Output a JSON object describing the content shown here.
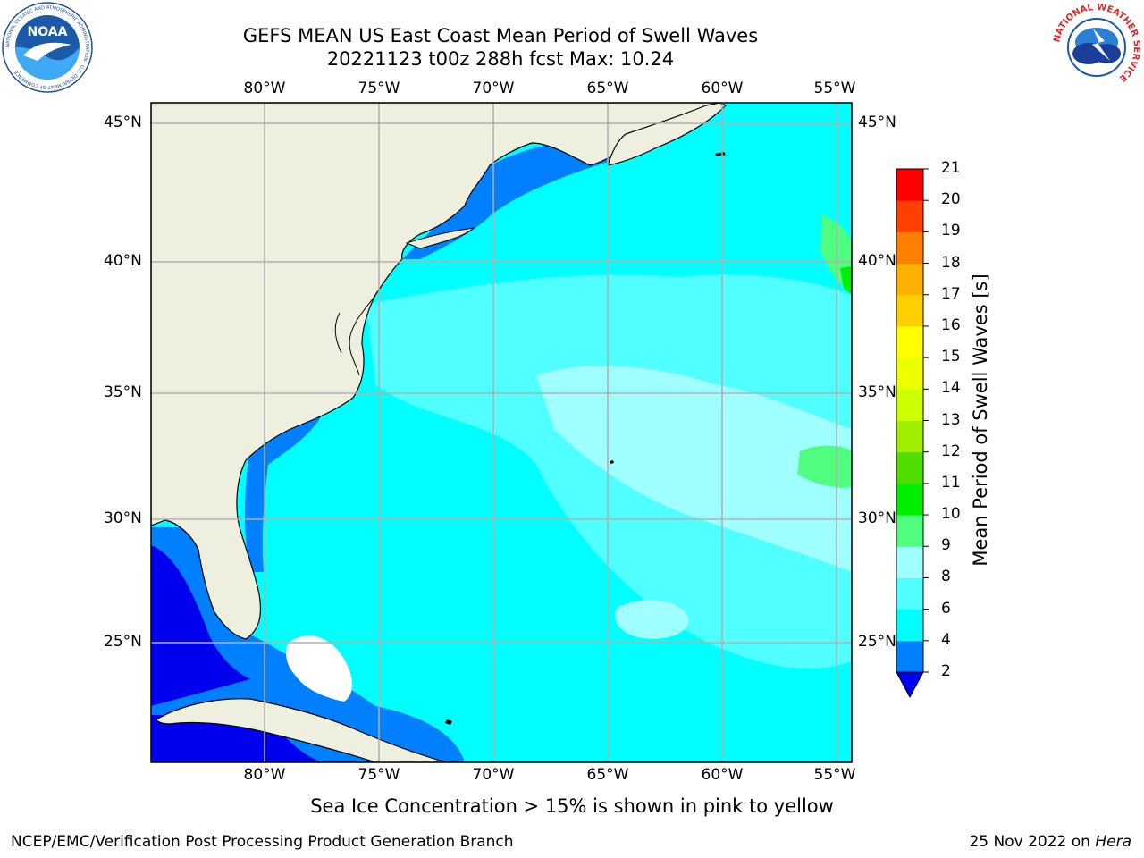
{
  "header": {
    "title_line1": "GEFS MEAN US East Coast Mean Period of Swell Waves",
    "title_line2": "20221123 t00z 288h fcst   Max: 10.24"
  },
  "logos": {
    "left": {
      "text": "NOAA",
      "icon": "noaa-logo",
      "ring_text": "NATIONAL OCEANIC AND ATMOSPHERIC ADMINISTRATION · U.S. DEPARTMENT OF COMMERCE"
    },
    "right": {
      "icon": "nws-logo",
      "ring_text": "NATIONAL WEATHER SERVICE"
    }
  },
  "map": {
    "lon_labels": [
      "80°W",
      "75°W",
      "70°W",
      "65°W",
      "60°W",
      "55°W"
    ],
    "lat_labels": [
      "45°N",
      "40°N",
      "35°N",
      "30°N",
      "25°N"
    ],
    "colors": {
      "land": "#efefdf",
      "ocean": "#00ffff",
      "grid": "#b0b0b0",
      "coast": "#000000"
    }
  },
  "colorbar": {
    "label": "Mean Period of Swell Waves [s]",
    "ticks": [
      "2",
      "4",
      "6",
      "8",
      "9",
      "10",
      "11",
      "12",
      "13",
      "14",
      "15",
      "16",
      "17",
      "18",
      "19",
      "20",
      "21"
    ],
    "colors": [
      "#0000ee",
      "#0080ff",
      "#00ffff",
      "#50ffff",
      "#a0ffff",
      "#50ff80",
      "#00ee00",
      "#50dd00",
      "#a0ee00",
      "#ccff00",
      "#eeff00",
      "#ffff00",
      "#ffd000",
      "#ffb000",
      "#ff8000",
      "#ff4000",
      "#ff0000"
    ]
  },
  "footer": {
    "note": "Sea Ice Concentration > 15% is shown in pink to yellow",
    "left": "NCEP/EMC/Verification Post Processing Product Generation Branch",
    "right_date": "25 Nov 2022 on",
    "right_host": "Hera"
  }
}
